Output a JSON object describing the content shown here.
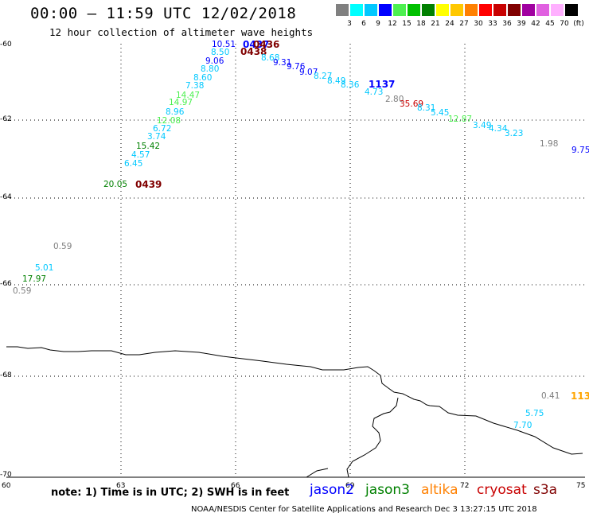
{
  "header": {
    "title": "00:00 — 11:59 UTC 12/02/2018",
    "subtitle": "12 hour collection of altimeter wave heights"
  },
  "colorbar": {
    "colors": [
      "#808080",
      "#00ffff",
      "#00c8ff",
      "#0000ff",
      "#4cf050",
      "#00c000",
      "#008000",
      "#ffff00",
      "#ffc800",
      "#ff8000",
      "#ff0000",
      "#c80000",
      "#800000",
      "#a000a0",
      "#e060e0",
      "#ffb0ff",
      "#000000"
    ],
    "labels": [
      "3",
      "6",
      "9",
      "12",
      "15",
      "18",
      "21",
      "24",
      "27",
      "30",
      "33",
      "36",
      "39",
      "42",
      "45",
      "70",
      "(ft)"
    ]
  },
  "axes": {
    "x_ticks": [
      "60",
      "63",
      "66",
      "69",
      "72",
      "75"
    ],
    "y_ticks": [
      "-60",
      "-62",
      "-64",
      "-66",
      "-68",
      "-70"
    ]
  },
  "observations": [
    {
      "text": "10.51",
      "c": "#0000ff"
    },
    {
      "text": "0437",
      "c": "#0000ff",
      "b": 1
    },
    {
      "text": "0436",
      "c": "#800000",
      "b": 1
    },
    {
      "text": "0438",
      "c": "#800000",
      "b": 1
    },
    {
      "text": "8.50",
      "c": "#00c8ff"
    },
    {
      "text": "8.68",
      "c": "#00c8ff"
    },
    {
      "text": "9.06",
      "c": "#0000ff"
    },
    {
      "text": "9.31",
      "c": "#0000ff"
    },
    {
      "text": "9.76",
      "c": "#0000ff"
    },
    {
      "text": "8.80",
      "c": "#00c8ff"
    },
    {
      "text": "9.07",
      "c": "#0000ff"
    },
    {
      "text": "8.60",
      "c": "#00c8ff"
    },
    {
      "text": "8.27",
      "c": "#00c8ff"
    },
    {
      "text": "8.49",
      "c": "#00c8ff"
    },
    {
      "text": "7.38",
      "c": "#00c8ff"
    },
    {
      "text": "8.36",
      "c": "#00c8ff"
    },
    {
      "text": "1137",
      "c": "#0000ff",
      "b": 1
    },
    {
      "text": "14.47",
      "c": "#4cf050"
    },
    {
      "text": "4.73",
      "c": "#00c8ff"
    },
    {
      "text": "2.80",
      "c": "#808080"
    },
    {
      "text": "14.97",
      "c": "#4cf050"
    },
    {
      "text": "35.69",
      "c": "#c80000"
    },
    {
      "text": "8.31",
      "c": "#00c8ff"
    },
    {
      "text": "8.96",
      "c": "#00c8ff"
    },
    {
      "text": "5.45",
      "c": "#00c8ff"
    },
    {
      "text": "12.87",
      "c": "#4cf050"
    },
    {
      "text": "12.08",
      "c": "#4cf050"
    },
    {
      "text": "3.49",
      "c": "#00c8ff"
    },
    {
      "text": "6.72",
      "c": "#00c8ff"
    },
    {
      "text": "4.34",
      "c": "#00c8ff"
    },
    {
      "text": "3.23",
      "c": "#00c8ff"
    },
    {
      "text": "3.74",
      "c": "#00c8ff"
    },
    {
      "text": "1.98",
      "c": "#808080"
    },
    {
      "text": "15.42",
      "c": "#008000"
    },
    {
      "text": "9.75",
      "c": "#0000ff"
    },
    {
      "text": "4.57",
      "c": "#00c8ff"
    },
    {
      "text": "6.45",
      "c": "#00c8ff"
    },
    {
      "text": "20.05",
      "c": "#008000"
    },
    {
      "text": "0439",
      "c": "#800000",
      "b": 1
    },
    {
      "text": "0.59",
      "c": "#808080"
    },
    {
      "text": "5.01",
      "c": "#00c8ff"
    },
    {
      "text": "17.97",
      "c": "#008000"
    },
    {
      "text": "0.59",
      "c": "#808080"
    },
    {
      "text": "0.41",
      "c": "#808080"
    },
    {
      "text": "113",
      "c": "#ffa500",
      "b": 1
    },
    {
      "text": "5.75",
      "c": "#00c8ff"
    },
    {
      "text": "7.70",
      "c": "#00c8ff"
    }
  ],
  "footer": {
    "note": "note: 1) Time is in UTC; 2) SWH is in feet",
    "satellites": [
      {
        "name": "jason2",
        "color": "#0000ff"
      },
      {
        "name": "jason3",
        "color": "#008000"
      },
      {
        "name": "altika",
        "color": "#ff8000"
      },
      {
        "name": "cryosat",
        "color": "#c80000"
      },
      {
        "name": "s3a",
        "color": "#800000"
      }
    ],
    "credit": "NOAA/NESDIS Center for Satellite Applications and Research    Dec  3 13:27:15 UTC 2018"
  }
}
